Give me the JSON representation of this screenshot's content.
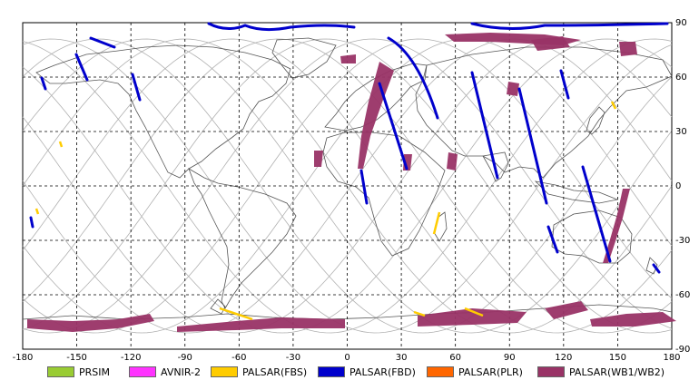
{
  "map": {
    "lat_ticks": [
      "90",
      "60",
      "30",
      "0",
      "-30",
      "-60",
      "-90"
    ],
    "lon_ticks": [
      "-180",
      "-150",
      "-120",
      "-90",
      "-60",
      "-30",
      "0",
      "30",
      "60",
      "90",
      "120",
      "150",
      "180"
    ],
    "lat_range": [
      -90,
      90
    ],
    "lon_range": [
      -180,
      180
    ],
    "grid": "dashed 30°"
  },
  "legend": {
    "items": [
      {
        "label": "PRSIM",
        "color": "#99cc33"
      },
      {
        "label": "AVNIR-2",
        "color": "#ff33ff"
      },
      {
        "label": "PALSAR(FBS)",
        "color": "#ffcc00"
      },
      {
        "label": "PALSAR(FBD)",
        "color": "#0000cc"
      },
      {
        "label": "PALSAR(PLR)",
        "color": "#ff6600"
      },
      {
        "label": "PALSAR(WB1/WB2)",
        "color": "#993366"
      }
    ]
  }
}
